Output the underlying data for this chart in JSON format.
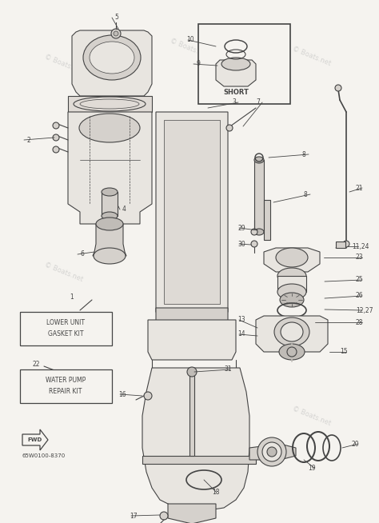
{
  "bg_color": "#f5f3ef",
  "lc": "#444444",
  "fc_light": "#e8e5e0",
  "fc_mid": "#d5d1cc",
  "fc_dark": "#c0bcb7",
  "watermark": "© Boats.net",
  "part_number": "65W0100-8370",
  "short_label": "SHORT",
  "box1": [
    "LOWER UNIT",
    "GASKET KIT"
  ],
  "box2": [
    "WATER PUMP",
    "REPAIR KIT"
  ],
  "fwd_label": "FWD"
}
